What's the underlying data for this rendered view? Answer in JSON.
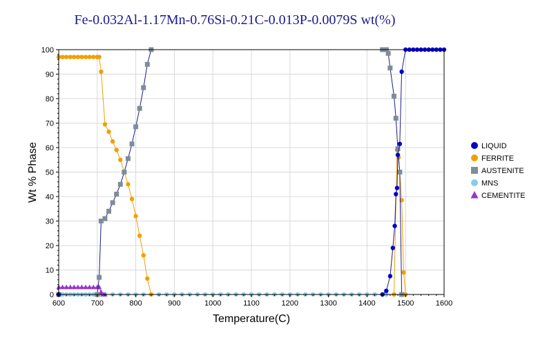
{
  "chart_data": {
    "type": "line",
    "title": "Fe-0.032Al-1.17Mn-0.76Si-0.21C-0.013P-0.0079S wt(%)",
    "xlabel": "Temperature(C)",
    "ylabel": "Wt % Phase",
    "xlim": [
      600,
      1600
    ],
    "ylim": [
      0,
      100
    ],
    "x_ticks": [
      600,
      700,
      800,
      900,
      1000,
      1100,
      1200,
      1300,
      1400,
      1500,
      1600
    ],
    "y_ticks": [
      0,
      10,
      20,
      30,
      40,
      50,
      60,
      70,
      80,
      90,
      100
    ],
    "grid": true,
    "legend_position": "right",
    "series": [
      {
        "name": "LIQUID",
        "color": "#0000cc",
        "marker": "circle",
        "x": [
          600,
          1440,
          1450,
          1460,
          1467,
          1472,
          1475,
          1478,
          1480,
          1485,
          1490,
          1500,
          1510,
          1520,
          1530,
          1540,
          1550,
          1560,
          1570,
          1580,
          1590,
          1600
        ],
        "y": [
          0,
          0,
          1.5,
          7.5,
          19,
          28,
          41,
          43.5,
          57,
          61.5,
          91,
          100,
          100,
          100,
          100,
          100,
          100,
          100,
          100,
          100,
          100,
          100
        ]
      },
      {
        "name": "FERRITE",
        "color": "#f0a000",
        "marker": "circle",
        "x": [
          600,
          610,
          620,
          630,
          640,
          650,
          660,
          670,
          680,
          690,
          700,
          705,
          710,
          720,
          730,
          740,
          750,
          760,
          770,
          780,
          790,
          800,
          810,
          820,
          830,
          840,
          1470,
          1478,
          1482,
          1485,
          1490,
          1495,
          1500
        ],
        "y": [
          97,
          97,
          97,
          97,
          97,
          97,
          97,
          97,
          97,
          97,
          97,
          97,
          91,
          69.5,
          66.5,
          62.5,
          59,
          55,
          50,
          45,
          39,
          32,
          24,
          16,
          6.5,
          0,
          0,
          59,
          56,
          50,
          38.5,
          9,
          0
        ]
      },
      {
        "name": "AUSTENITE",
        "color": "#7f8c9a",
        "marker": "square",
        "x": [
          600,
          700,
          705,
          710,
          720,
          730,
          740,
          750,
          760,
          770,
          780,
          790,
          800,
          810,
          820,
          830,
          840,
          1440,
          1450,
          1455,
          1460,
          1470,
          1475,
          1480,
          1485,
          1490
        ],
        "y": [
          0,
          0,
          7,
          30,
          31,
          34,
          37.5,
          41,
          45,
          50,
          55.5,
          61.5,
          68.5,
          76,
          84.5,
          94,
          100,
          100,
          100,
          98.5,
          92.5,
          81,
          72,
          59.5,
          50,
          0
        ]
      },
      {
        "name": "MNS",
        "color": "#87cee6",
        "marker": "circle",
        "x": [
          600,
          610,
          620,
          630,
          640,
          650,
          660,
          670,
          680,
          690,
          700,
          710,
          720,
          740,
          760,
          780,
          800,
          820,
          840,
          860,
          880,
          900,
          920,
          940,
          960,
          980,
          1000,
          1020,
          1040,
          1060,
          1080,
          1100,
          1120,
          1140,
          1160,
          1180,
          1200,
          1220,
          1240,
          1260,
          1280,
          1300,
          1320,
          1340,
          1360,
          1380,
          1400,
          1420,
          1440,
          1450
        ],
        "y": [
          0,
          0,
          0,
          0,
          0,
          0,
          0,
          0,
          0,
          0,
          0,
          0,
          0,
          0,
          0,
          0,
          0,
          0,
          0,
          0,
          0,
          0,
          0,
          0,
          0,
          0,
          0,
          0,
          0,
          0,
          0,
          0,
          0,
          0,
          0,
          0,
          0,
          0,
          0,
          0,
          0,
          0,
          0,
          0,
          0,
          0,
          0,
          0,
          0,
          0
        ]
      },
      {
        "name": "CEMENTITE",
        "color": "#9933cc",
        "marker": "triangle",
        "x": [
          600,
          610,
          620,
          630,
          640,
          650,
          660,
          670,
          680,
          690,
          700,
          705,
          710,
          715,
          720
        ],
        "y": [
          3,
          3,
          3,
          3,
          3,
          3,
          3,
          3,
          3,
          3,
          3,
          3,
          1,
          0,
          0
        ]
      }
    ]
  }
}
